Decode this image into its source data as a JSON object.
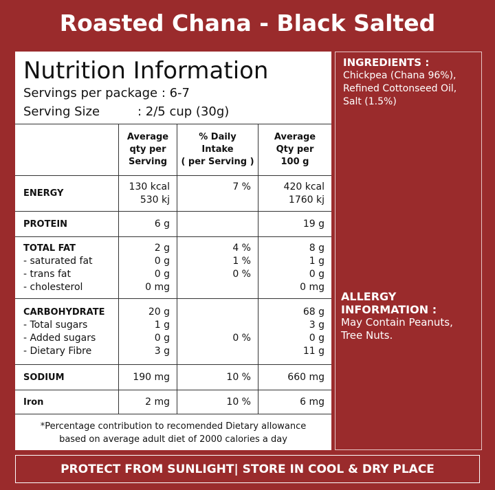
{
  "header": {
    "title": "Roasted Chana - Black Salted"
  },
  "nutrition": {
    "heading": "Nutrition Information",
    "servings": "Servings per package : 6-7",
    "serving_size_label": "Serving Size",
    "serving_size": ": 2/5 cup (30g)"
  },
  "table": {
    "columns": [
      [
        "Average",
        "qty per",
        "Serving"
      ],
      [
        "% Daily",
        "Intake",
        "( per Serving )"
      ],
      [
        "Average",
        "Qty per",
        "100 g"
      ]
    ],
    "rows": [
      {
        "label": [
          "ENERGY"
        ],
        "serving": [
          "130 kcal",
          "530 kj"
        ],
        "daily": [
          "7 %",
          null
        ],
        "per100": [
          "420 kcal",
          "1760 kj"
        ]
      },
      {
        "label": [
          "PROTEIN"
        ],
        "serving": [
          "6 g"
        ],
        "daily": [],
        "per100": [
          "19 g"
        ]
      },
      {
        "label": [
          "TOTAL FAT",
          "- saturated fat",
          "- trans fat",
          "- cholesterol"
        ],
        "serving": [
          "2 g",
          "0 g",
          "0 g",
          "0 mg"
        ],
        "daily": [
          "4 %",
          "1 %",
          "0 %",
          null
        ],
        "per100": [
          "8 g",
          "1 g",
          "0 g",
          "0 mg"
        ]
      },
      {
        "label": [
          "CARBOHYDRATE",
          "- Total sugars",
          "- Added sugars",
          "- Dietary Fibre"
        ],
        "serving": [
          "20 g",
          "1 g",
          "0 g",
          "3 g"
        ],
        "daily": [
          null,
          null,
          "0 %",
          null
        ],
        "per100": [
          "68 g",
          "3 g",
          "0 g",
          "11 g"
        ]
      },
      {
        "label": [
          "SODIUM"
        ],
        "serving": [
          "190 mg"
        ],
        "daily": [
          "10 %"
        ],
        "per100": [
          "660 mg"
        ]
      },
      {
        "label": [
          "Iron"
        ],
        "serving": [
          "2 mg"
        ],
        "daily": [
          "10 %"
        ],
        "per100": [
          "6 mg"
        ]
      }
    ],
    "footnote": [
      "*Percentage contribution to recomended Dietary allowance",
      "based on average adult diet of 2000 calories a day"
    ]
  },
  "ingredients": {
    "heading": "INGREDIENTS :",
    "lines": [
      "Chickpea (Chana 96%),",
      "Refined Cottonseed Oil,",
      "Salt (1.5%)"
    ]
  },
  "allergy": {
    "heading": [
      "ALLERGY",
      "INFORMATION :"
    ],
    "lines": [
      "May Contain Peanuts,",
      "Tree Nuts."
    ]
  },
  "footer": {
    "text": "PROTECT FROM SUNLIGHT| STORE IN COOL & DRY PLACE"
  }
}
